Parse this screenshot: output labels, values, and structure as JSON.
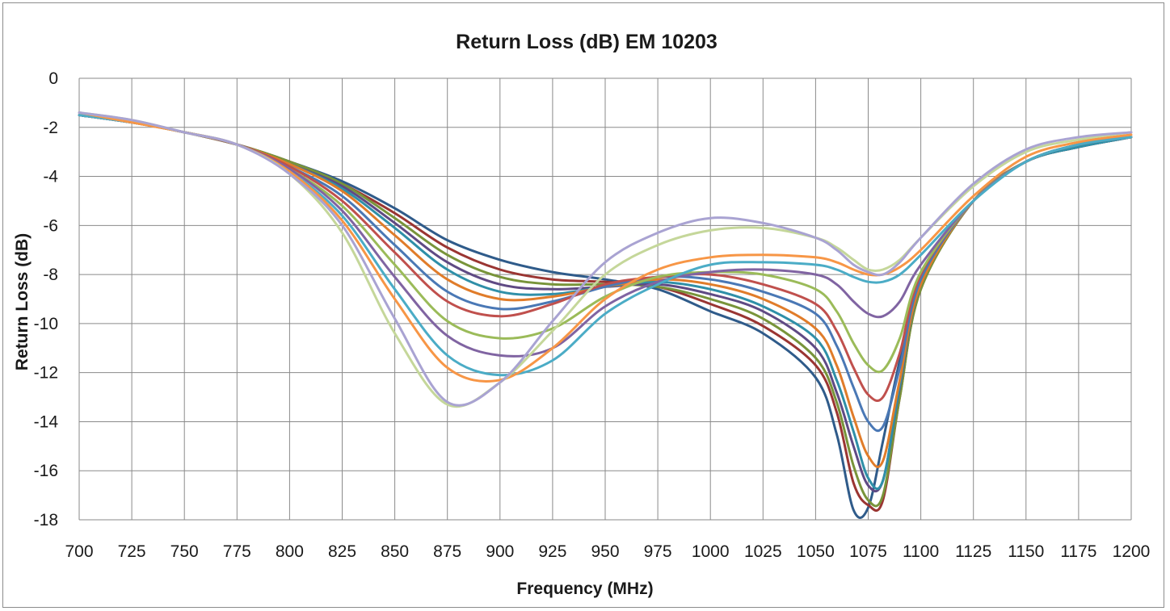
{
  "chart_data": {
    "type": "line",
    "title": "Return Loss (dB) EM 10203",
    "xlabel": "Frequency (MHz)",
    "ylabel": "Return Loss (dB)",
    "xlim": [
      700,
      1200
    ],
    "ylim": [
      -18,
      0
    ],
    "x_ticks": [
      "700",
      "725",
      "750",
      "775",
      "800",
      "825",
      "850",
      "875",
      "900",
      "925",
      "950",
      "975",
      "1000",
      "1025",
      "1050",
      "1075",
      "1100",
      "1125",
      "1150",
      "1175",
      "1200"
    ],
    "y_ticks": [
      "0",
      "-2",
      "-4",
      "-6",
      "-8",
      "-10",
      "-12",
      "-14",
      "-16",
      "-18"
    ],
    "grid": true,
    "legend": "none",
    "x": [
      700,
      725,
      750,
      775,
      800,
      825,
      850,
      875,
      900,
      925,
      950,
      975,
      1000,
      1025,
      1050,
      1060,
      1068,
      1075,
      1082,
      1090,
      1100,
      1125,
      1150,
      1175,
      1200
    ],
    "series": [
      {
        "color": "#2f5b8a",
        "values": [
          -1.5,
          -1.8,
          -2.2,
          -2.7,
          -3.4,
          -4.2,
          -5.3,
          -6.6,
          -7.4,
          -7.9,
          -8.2,
          -8.6,
          -9.5,
          -10.4,
          -12.2,
          -14.5,
          -17.6,
          -17.5,
          -14.8,
          -11.5,
          -8.2,
          -5.0,
          -3.4,
          -2.8,
          -2.4
        ]
      },
      {
        "color": "#9a3532",
        "values": [
          -1.5,
          -1.8,
          -2.2,
          -2.7,
          -3.4,
          -4.3,
          -5.5,
          -6.9,
          -7.8,
          -8.2,
          -8.3,
          -8.5,
          -9.2,
          -10.1,
          -11.7,
          -13.6,
          -16.5,
          -17.4,
          -17.2,
          -13.0,
          -8.6,
          -5.0,
          -3.4,
          -2.8,
          -2.4
        ]
      },
      {
        "color": "#78943a",
        "values": [
          -1.5,
          -1.8,
          -2.2,
          -2.7,
          -3.4,
          -4.3,
          -5.7,
          -7.2,
          -8.1,
          -8.4,
          -8.4,
          -8.5,
          -9.0,
          -9.8,
          -11.4,
          -13.2,
          -15.8,
          -17.2,
          -17.0,
          -13.0,
          -8.6,
          -5.0,
          -3.4,
          -2.8,
          -2.4
        ]
      },
      {
        "color": "#5f4a84",
        "values": [
          -1.5,
          -1.8,
          -2.2,
          -2.7,
          -3.5,
          -4.4,
          -5.9,
          -7.5,
          -8.4,
          -8.6,
          -8.5,
          -8.4,
          -8.8,
          -9.5,
          -11.0,
          -12.8,
          -15.0,
          -16.6,
          -16.4,
          -12.6,
          -8.4,
          -5.0,
          -3.4,
          -2.8,
          -2.4
        ]
      },
      {
        "color": "#2f8fa8",
        "values": [
          -1.5,
          -1.8,
          -2.2,
          -2.7,
          -3.5,
          -4.5,
          -6.1,
          -7.8,
          -8.7,
          -8.8,
          -8.5,
          -8.3,
          -8.6,
          -9.3,
          -10.6,
          -12.3,
          -14.4,
          -16.3,
          -16.4,
          -12.5,
          -8.4,
          -5.0,
          -3.4,
          -2.8,
          -2.4
        ]
      },
      {
        "color": "#e07c2a",
        "values": [
          -1.5,
          -1.8,
          -2.2,
          -2.7,
          -3.5,
          -4.6,
          -6.4,
          -8.2,
          -9.0,
          -8.9,
          -8.5,
          -8.2,
          -8.4,
          -9.0,
          -10.2,
          -11.7,
          -13.8,
          -15.4,
          -15.6,
          -12.3,
          -8.4,
          -5.0,
          -3.4,
          -2.7,
          -2.4
        ]
      },
      {
        "color": "#4a78b5",
        "values": [
          -1.5,
          -1.8,
          -2.2,
          -2.7,
          -3.6,
          -4.8,
          -6.8,
          -8.7,
          -9.4,
          -9.1,
          -8.5,
          -8.1,
          -8.2,
          -8.7,
          -9.6,
          -10.9,
          -12.6,
          -14.0,
          -14.2,
          -11.8,
          -8.2,
          -5.0,
          -3.4,
          -2.7,
          -2.4
        ]
      },
      {
        "color": "#c0504d",
        "values": [
          -1.5,
          -1.8,
          -2.2,
          -2.7,
          -3.6,
          -5.0,
          -7.1,
          -9.1,
          -9.7,
          -9.2,
          -8.4,
          -8.1,
          -8.0,
          -8.4,
          -9.2,
          -10.3,
          -11.8,
          -12.9,
          -13.0,
          -11.2,
          -8.0,
          -5.0,
          -3.4,
          -2.7,
          -2.4
        ]
      },
      {
        "color": "#9bbb59",
        "values": [
          -1.5,
          -1.8,
          -2.2,
          -2.7,
          -3.7,
          -5.2,
          -7.6,
          -9.9,
          -10.6,
          -10.2,
          -8.9,
          -8.1,
          -7.9,
          -8.0,
          -8.6,
          -9.5,
          -10.8,
          -11.7,
          -11.9,
          -10.6,
          -7.9,
          -5.0,
          -3.4,
          -2.7,
          -2.4
        ]
      },
      {
        "color": "#8064a2",
        "values": [
          -1.5,
          -1.8,
          -2.2,
          -2.7,
          -3.7,
          -5.4,
          -8.1,
          -10.5,
          -11.3,
          -11.0,
          -9.3,
          -8.3,
          -7.9,
          -7.8,
          -8.0,
          -8.4,
          -9.1,
          -9.6,
          -9.7,
          -9.1,
          -7.6,
          -5.0,
          -3.4,
          -2.7,
          -2.4
        ]
      },
      {
        "color": "#4bacc6",
        "values": [
          -1.5,
          -1.8,
          -2.2,
          -2.7,
          -3.8,
          -5.6,
          -8.6,
          -11.3,
          -12.1,
          -11.5,
          -9.6,
          -8.4,
          -7.6,
          -7.5,
          -7.6,
          -7.8,
          -8.1,
          -8.3,
          -8.3,
          -8.0,
          -7.2,
          -5.0,
          -3.4,
          -2.7,
          -2.4
        ]
      },
      {
        "color": "#f79646",
        "values": [
          -1.4,
          -1.8,
          -2.2,
          -2.7,
          -3.8,
          -5.8,
          -9.0,
          -11.8,
          -12.3,
          -11.0,
          -9.0,
          -7.8,
          -7.3,
          -7.2,
          -7.3,
          -7.5,
          -7.8,
          -8.0,
          -8.0,
          -7.7,
          -7.0,
          -4.8,
          -3.2,
          -2.6,
          -2.3
        ]
      },
      {
        "color": "#c5d79a",
        "values": [
          -1.4,
          -1.7,
          -2.2,
          -2.7,
          -3.9,
          -6.3,
          -10.4,
          -13.3,
          -12.4,
          -10.3,
          -8.0,
          -6.8,
          -6.2,
          -6.1,
          -6.5,
          -6.9,
          -7.4,
          -7.8,
          -7.8,
          -7.4,
          -6.5,
          -4.4,
          -3.0,
          -2.5,
          -2.2
        ]
      },
      {
        "color": "#a9a3d2",
        "values": [
          -1.4,
          -1.7,
          -2.2,
          -2.7,
          -3.9,
          -6.0,
          -9.8,
          -13.2,
          -12.4,
          -9.9,
          -7.5,
          -6.3,
          -5.7,
          -5.9,
          -6.5,
          -7.0,
          -7.6,
          -7.9,
          -8.0,
          -7.5,
          -6.5,
          -4.3,
          -2.9,
          -2.4,
          -2.2
        ]
      }
    ]
  }
}
